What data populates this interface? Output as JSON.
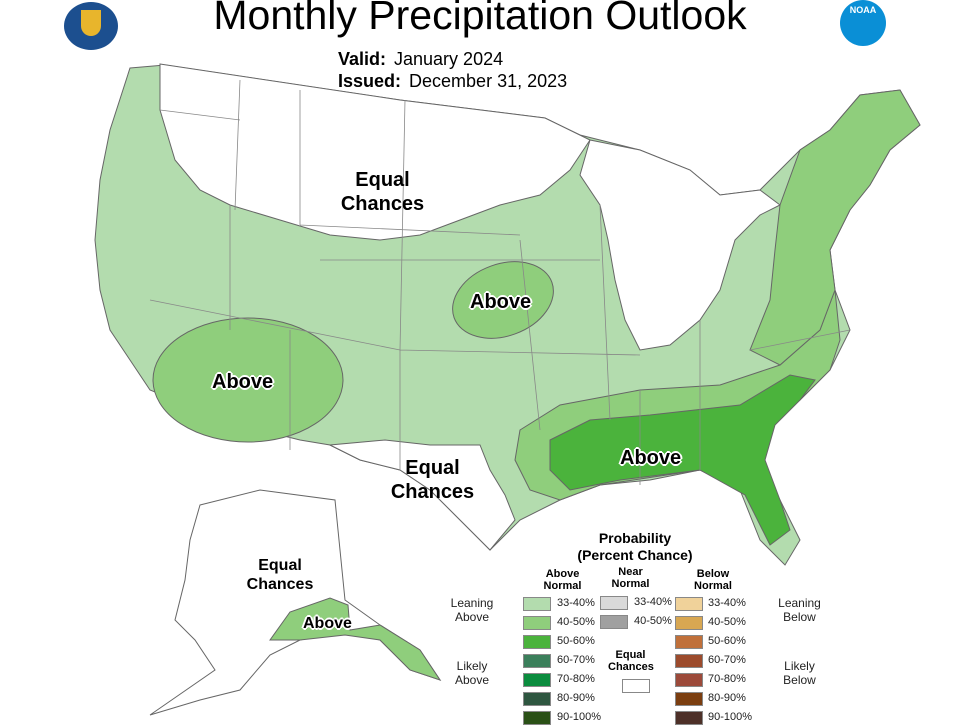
{
  "header": {
    "title": "Monthly Precipitation Outlook",
    "valid_label": "Valid:",
    "valid_value": "January 2024",
    "issued_label": "Issued:",
    "issued_value": "December 31, 2023"
  },
  "logos": {
    "left": "department-of-commerce-seal",
    "right": "NOAA"
  },
  "map_labels": {
    "north_ec": "Equal Chances",
    "tx_ec": "Equal Chances",
    "sw_above": "Above",
    "plains_above": "Above",
    "se_above": "Above",
    "ak_ec": "Equal Chances",
    "ak_above": "Above"
  },
  "legend": {
    "title": "Probability",
    "subtitle": "(Percent Chance)",
    "above_header": "Above Normal",
    "near_header": "Near Normal",
    "below_header": "Below Normal",
    "leaning_above": "Leaning Above",
    "likely_above": "Likely Above",
    "leaning_below": "Leaning Below",
    "likely_below": "Likely Below",
    "equal_chances": "Equal Chances",
    "above": [
      {
        "range": "33-40%",
        "color": "#b3dcae"
      },
      {
        "range": "40-50%",
        "color": "#8fce7c"
      },
      {
        "range": "50-60%",
        "color": "#4bb33c"
      },
      {
        "range": "60-70%",
        "color": "#3b7f5b"
      },
      {
        "range": "70-80%",
        "color": "#0b8c3e"
      },
      {
        "range": "80-90%",
        "color": "#2e5640"
      },
      {
        "range": "90-100%",
        "color": "#2a5016"
      }
    ],
    "near": [
      {
        "range": "33-40%",
        "color": "#d9d9d9"
      },
      {
        "range": "40-50%",
        "color": "#a0a0a0"
      }
    ],
    "below": [
      {
        "range": "33-40%",
        "color": "#f0d29a"
      },
      {
        "range": "40-50%",
        "color": "#d8a752"
      },
      {
        "range": "50-60%",
        "color": "#c0703a"
      },
      {
        "range": "60-70%",
        "color": "#9c4b2c"
      },
      {
        "range": "70-80%",
        "color": "#9c4a3a"
      },
      {
        "range": "80-90%",
        "color": "#7b3e10"
      },
      {
        "range": "90-100%",
        "color": "#4d3028"
      }
    ]
  }
}
